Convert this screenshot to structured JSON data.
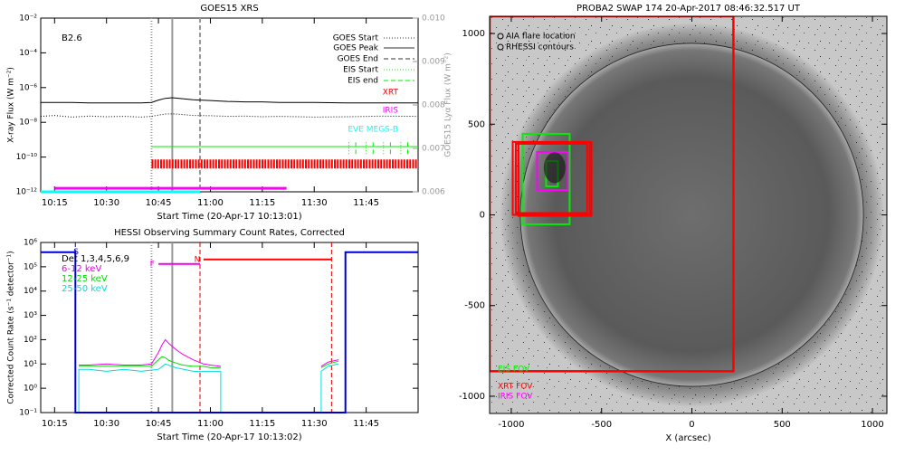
{
  "chart_data": [
    {
      "type": "line",
      "title": "GOES15 XRS",
      "xlabel": "Start Time (20-Apr-17 10:13:01)",
      "ylabel": "X-ray Flux (W m⁻²)",
      "y2label": "GOES15 Lyα Flux (W m⁻²)",
      "yscale": "log",
      "annotation": "B2.6",
      "xlim": [
        "10:11",
        "12:00"
      ],
      "xticks": [
        "10:15",
        "10:30",
        "10:45",
        "11:00",
        "11:15",
        "11:30",
        "11:45"
      ],
      "ylim": [
        1e-12,
        0.01
      ],
      "yticks": [
        {
          "value": 0.01,
          "label": "10⁻²"
        },
        {
          "value": 0.0001,
          "label": "10⁻⁴"
        },
        {
          "value": 1e-06,
          "label": "10⁻⁶"
        },
        {
          "value": 1e-08,
          "label": "10⁻⁸"
        },
        {
          "value": 1e-10,
          "label": "10⁻¹⁰"
        },
        {
          "value": 1e-12,
          "label": "10⁻¹²"
        }
      ],
      "y2lim": [
        0.006,
        0.01
      ],
      "y2ticks": [
        0.006,
        0.007,
        0.008,
        0.009,
        {
          "value": 0.01,
          "label": "0.010"
        }
      ],
      "series": [
        {
          "color": "#000000",
          "style": "solid",
          "x": [
            "10:11",
            "10:15",
            "10:20",
            "10:25",
            "10:30",
            "10:35",
            "10:40",
            "10:43",
            "10:45",
            "10:47",
            "10:49",
            "10:52",
            "10:55",
            "11:00",
            "11:05",
            "11:10",
            "11:15",
            "11:20",
            "11:30",
            "11:40",
            "11:50",
            "12:00"
          ],
          "values": [
            1.4e-07,
            1.4e-07,
            1.4e-07,
            1.3e-07,
            1.3e-07,
            1.3e-07,
            1.3e-07,
            1.4e-07,
            1.9e-07,
            2.4e-07,
            2.6e-07,
            2.3e-07,
            2e-07,
            1.8e-07,
            1.6e-07,
            1.5e-07,
            1.5e-07,
            1.4e-07,
            1.4e-07,
            1.3e-07,
            1.3e-07,
            1.3e-07
          ]
        },
        {
          "color": "#000000",
          "style": "dotted",
          "x": [
            "10:11",
            "10:15",
            "10:20",
            "10:25",
            "10:30",
            "10:35",
            "10:40",
            "10:43",
            "10:45",
            "10:47",
            "10:49",
            "10:52",
            "10:55",
            "11:00",
            "11:05",
            "11:10",
            "11:15",
            "11:20",
            "11:30",
            "11:40",
            "11:50",
            "12:00"
          ],
          "values": [
            2.2e-08,
            2.5e-08,
            2e-08,
            2.3e-08,
            2.1e-08,
            2.2e-08,
            2e-08,
            2.2e-08,
            2.6e-08,
            3e-08,
            3.1e-08,
            2.8e-08,
            2.5e-08,
            2.4e-08,
            2.2e-08,
            2.3e-08,
            2.1e-08,
            2.2e-08,
            2e-08,
            2.1e-08,
            2.3e-08,
            2.2e-08
          ]
        }
      ],
      "events": [
        {
          "name": "GOES Start",
          "time": "10:43",
          "color": "#999999",
          "style": "dotted"
        },
        {
          "name": "GOES Peak",
          "time": "10:49",
          "color": "#999999",
          "style": "solid"
        },
        {
          "name": "GOES End",
          "time": "10:57",
          "color": "#999999",
          "style": "dashed"
        }
      ],
      "coverage": [
        {
          "name": "EIS Start",
          "color": "#00ee00",
          "style": "dotted",
          "times": [
            "11:40",
            "11:45",
            "11:50",
            "11:55"
          ],
          "range": [
            1.5e-10,
            8e-10
          ]
        },
        {
          "name": "EIS end",
          "color": "#00ee00",
          "style": "dashed",
          "times": [
            "11:42",
            "11:47",
            "11:52",
            "11:57"
          ],
          "range": [
            1.5e-10,
            8e-10
          ]
        },
        {
          "name": "XRT",
          "color": "#ff0000",
          "style": "ticks",
          "start": "10:43",
          "end": "12:00",
          "value": 4e-11
        },
        {
          "name": "IRIS",
          "color": "#ff00ff",
          "style": "solid",
          "start": "10:15",
          "end": "11:22",
          "value": 1.6e-12
        },
        {
          "name": "EVE MEGS-B",
          "color": "#00ffff",
          "style": "solid",
          "start": "10:11",
          "end": "10:57",
          "value": 1e-12
        },
        {
          "color": "#00ee00",
          "style": "thin",
          "start": "10:43",
          "end": "12:00",
          "value": 4e-10
        }
      ]
    },
    {
      "type": "line",
      "title": "HESSI Observing Summary Count Rates, Corrected",
      "xlabel": "Start Time (20-Apr-17 10:13:02)",
      "ylabel": "Corrected Count Rate (s⁻¹ detector⁻¹)",
      "yscale": "log",
      "legend_title": "Det 1,3,4,5,6,9",
      "xlim": [
        "10:11",
        "12:00"
      ],
      "xticks": [
        "10:15",
        "10:30",
        "10:45",
        "11:00",
        "11:15",
        "11:30",
        "11:45"
      ],
      "ylim": [
        0.1,
        1000000
      ],
      "yticks": [
        {
          "value": 0.1,
          "label": "10⁻¹"
        },
        {
          "value": 1,
          "label": "10⁰"
        },
        {
          "value": 10,
          "label": "10¹"
        },
        {
          "value": 100,
          "label": "10²"
        },
        {
          "value": 1000,
          "label": "10³"
        },
        {
          "value": 10000,
          "label": "10⁴"
        },
        {
          "value": 100000,
          "label": "10⁵"
        },
        {
          "value": 1000000,
          "label": "10⁶"
        }
      ],
      "series": [
        {
          "name": "6-12 keV",
          "color": "#ee00ee",
          "x": [
            "10:22",
            "10:25",
            "10:30",
            "10:35",
            "10:40",
            "10:43",
            "10:45",
            "10:46",
            "10:47",
            "10:48",
            "10:50",
            "10:52",
            "10:55",
            "10:58",
            "11:00",
            "11:03",
            "11:15",
            "11:32",
            "11:34",
            "11:37"
          ],
          "values": [
            9,
            9,
            10,
            9,
            9,
            10,
            30,
            60,
            100,
            70,
            40,
            25,
            15,
            10,
            9,
            8,
            null,
            8,
            12,
            15
          ]
        },
        {
          "name": "12-25 keV",
          "color": "#00dd00",
          "x": [
            "10:22",
            "10:25",
            "10:30",
            "10:35",
            "10:40",
            "10:43",
            "10:45",
            "10:46",
            "10:47",
            "10:48",
            "10:50",
            "10:52",
            "10:55",
            "10:58",
            "11:00",
            "11:03",
            "11:15",
            "11:32",
            "11:34",
            "11:37"
          ],
          "values": [
            8,
            8,
            8,
            8,
            8,
            8,
            15,
            20,
            18,
            14,
            11,
            9,
            8,
            8,
            7,
            7,
            null,
            7,
            10,
            13
          ]
        },
        {
          "name": "25-50 keV",
          "color": "#00dddd",
          "x": [
            "10:22",
            "10:22",
            "10:25",
            "10:30",
            "10:35",
            "10:40",
            "10:45",
            "10:47",
            "10:50",
            "10:55",
            "11:00",
            "11:03",
            "11:03",
            "11:15",
            "11:32",
            "11:32",
            "11:34",
            "11:37"
          ],
          "values": [
            0.1,
            6,
            6,
            5,
            6,
            5,
            6,
            10,
            7,
            5,
            5,
            5,
            0.1,
            null,
            0.1,
            5,
            8,
            10
          ]
        },
        {
          "color": "#0000cc",
          "x": [
            "10:11",
            "10:21",
            "10:21",
            "11:39",
            "11:39",
            "12:00"
          ],
          "values": [
            400000,
            400000,
            0.1,
            0.1,
            400000,
            400000
          ]
        }
      ],
      "markers": [
        {
          "time": "10:21",
          "color": "#0000cc",
          "style": "dashed"
        },
        {
          "time": "10:43",
          "color": "#999999",
          "style": "dotted"
        },
        {
          "time": "10:49",
          "color": "#999999",
          "style": "solid"
        },
        {
          "time": "10:57",
          "color": "#cc0000",
          "style": "dashed"
        },
        {
          "time": "11:35",
          "color": "#cc0000",
          "style": "dashed"
        }
      ],
      "bars": [
        {
          "color": "#ff0000",
          "start": "10:58",
          "end": "11:35",
          "value": 200000
        },
        {
          "color": "#ee00ee",
          "start": "10:45",
          "end": "10:57",
          "value": 130000
        }
      ],
      "flags": [
        {
          "text": "S",
          "time": "10:22",
          "value": 400000,
          "color": "#0000cc"
        },
        {
          "text": "F",
          "time": "10:44",
          "value": 130000,
          "color": "#ee00ee"
        },
        {
          "text": "N",
          "time": "10:57",
          "value": 200000,
          "color": "#ff0000"
        }
      ]
    },
    {
      "type": "image",
      "title": "PROBA2 SWAP 174 20-Apr-2017 08:46:32.517 UT",
      "xlabel": "X (arcsec)",
      "xlim": [
        -1120,
        1080
      ],
      "ylim": [
        -1095,
        1095
      ],
      "xticks": [
        -1000,
        -500,
        0,
        500,
        1000
      ],
      "yticks": [
        -1000,
        -500,
        0,
        500,
        1000
      ],
      "legend": [
        "AIA flare location",
        "RHESSI contours"
      ],
      "disk": {
        "x": 0,
        "y": 0,
        "r": 950
      },
      "boxes": [
        {
          "label": "EIS FOV",
          "color": "#00ee00",
          "x": [
            -937,
            -677
          ],
          "y": [
            -52,
            447
          ]
        },
        {
          "label": "XRT FOV",
          "color": "#ff0000",
          "x": [
            -1120,
            230
          ],
          "y": [
            -862,
            1095
          ]
        },
        {
          "label": "IRIS FOV",
          "color": "#ff00ff",
          "x": [
            -857,
            -687
          ],
          "y": [
            137,
            347
          ]
        },
        {
          "color": "#ff0000",
          "x": [
            -992,
            -566
          ],
          "y": [
            0,
            402
          ]
        },
        {
          "color": "#ff0000",
          "x": [
            -975,
            -580
          ],
          "y": [
            10,
            392
          ]
        },
        {
          "color": "#ff0000",
          "x": [
            -960,
            -556
          ],
          "y": [
            -5,
            400
          ]
        },
        {
          "color": "#00ee00",
          "x": [
            -807,
            -742
          ],
          "y": [
            157,
            297
          ]
        }
      ]
    }
  ]
}
